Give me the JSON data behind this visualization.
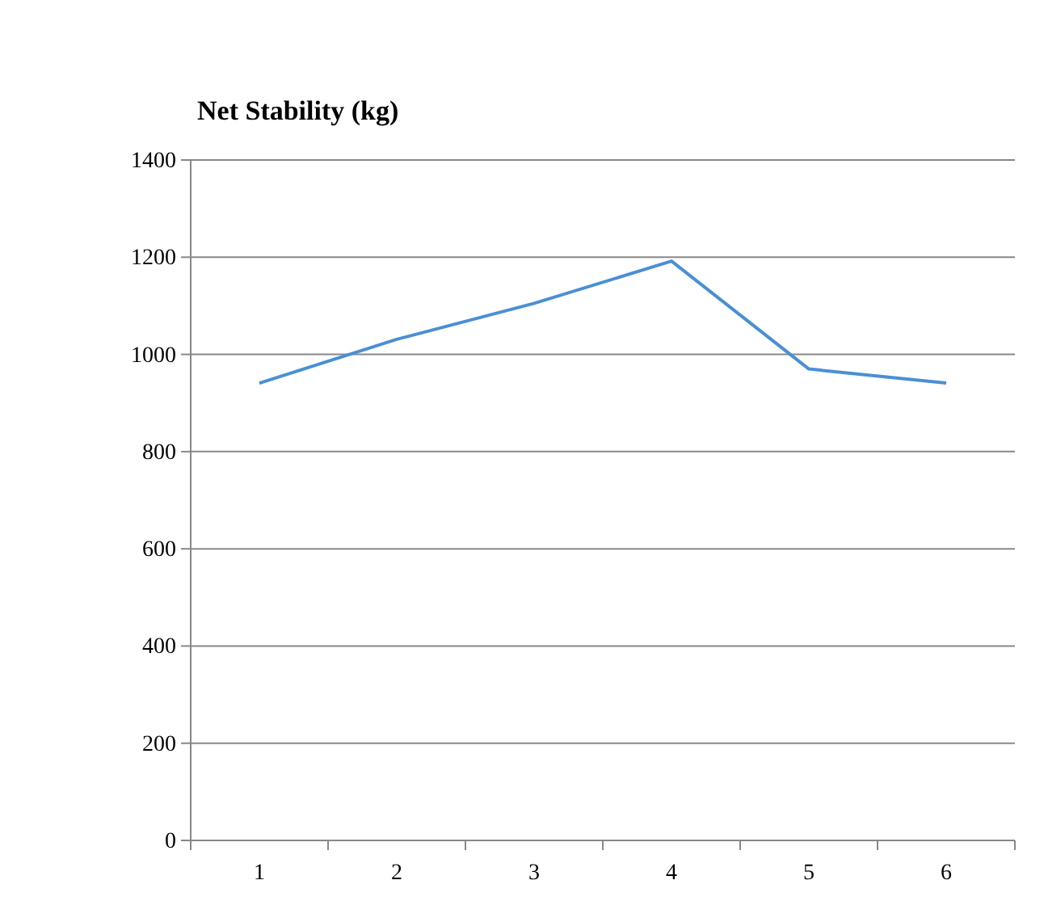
{
  "chart_data": {
    "type": "line",
    "title": "Net Stability (kg)",
    "categories": [
      "1",
      "2",
      "3",
      "4",
      "5",
      "6"
    ],
    "series": [
      {
        "color": "#4a8fd4",
        "values": [
          941,
          1031,
          1105,
          1192,
          970,
          941
        ]
      }
    ],
    "ylim": [
      0,
      1400
    ],
    "yticks": [
      0,
      200,
      400,
      600,
      800,
      1000,
      1200,
      1400
    ],
    "grid": "y",
    "marker": "none"
  }
}
